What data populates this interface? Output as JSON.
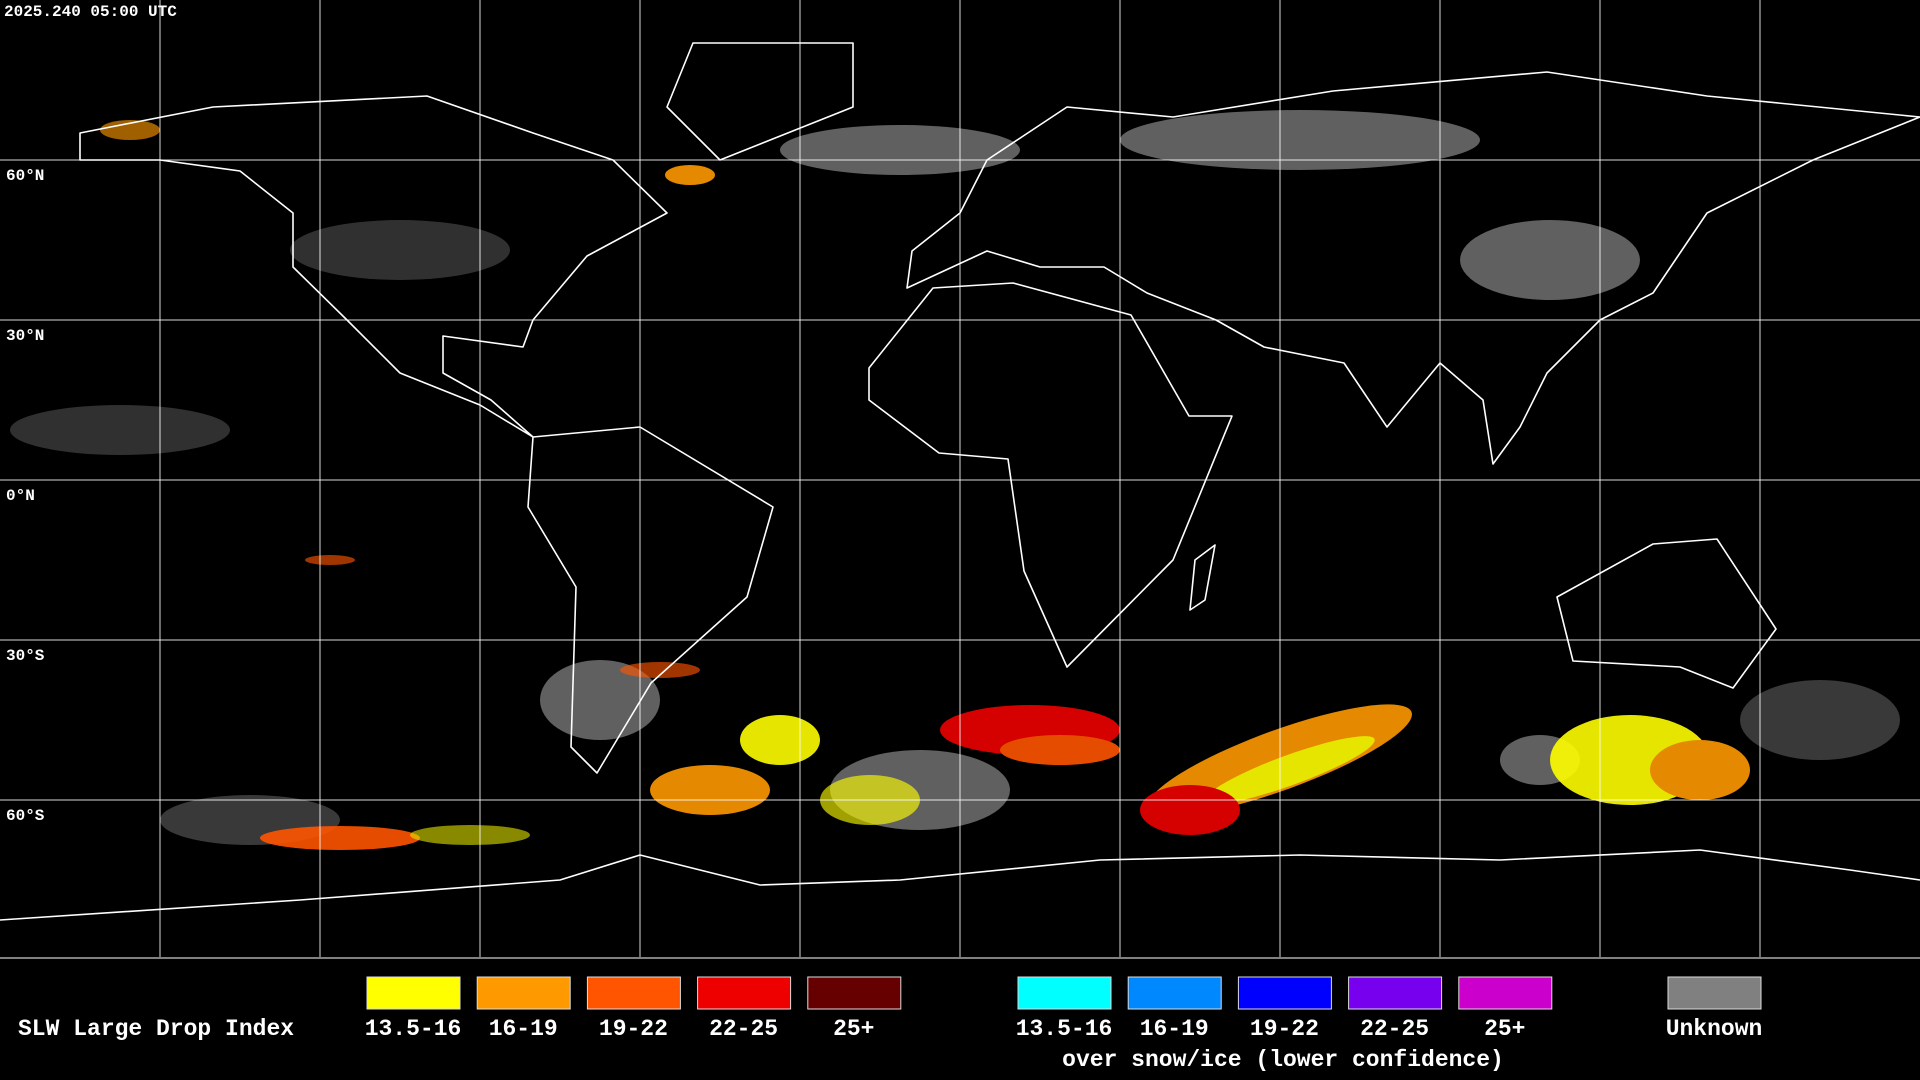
{
  "header": {
    "timestamp": "2025.240 05:00 UTC"
  },
  "map": {
    "lat_labels": [
      "60°N",
      "30°N",
      "0°N",
      "30°S",
      "60°S"
    ]
  },
  "legend": {
    "title": "SLW Large Drop Index",
    "groups": [
      {
        "items": [
          {
            "label": "13.5-16",
            "color": "#ffff00"
          },
          {
            "label": "16-19",
            "color": "#ff9900"
          },
          {
            "label": "19-22",
            "color": "#ff5500"
          },
          {
            "label": "22-25",
            "color": "#ee0000"
          },
          {
            "label": "25+",
            "color": "#660000"
          }
        ]
      },
      {
        "items": [
          {
            "label": "13.5-16",
            "color": "#00ffff"
          },
          {
            "label": "16-19",
            "color": "#0088ff"
          },
          {
            "label": "19-22",
            "color": "#0000ff"
          },
          {
            "label": "22-25",
            "color": "#7700ee"
          },
          {
            "label": "25+",
            "color": "#cc00cc"
          }
        ],
        "note": "over snow/ice (lower confidence)"
      }
    ],
    "unknown": {
      "label": "Unknown",
      "color": "#808080"
    }
  }
}
